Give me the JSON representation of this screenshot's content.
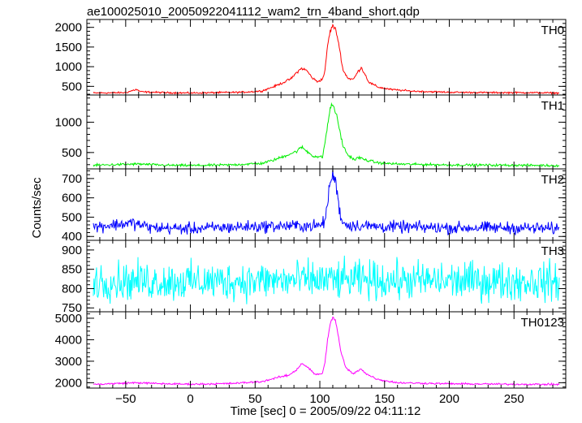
{
  "title": "ae100025010_20050922041112_wam2_trn_4band_short.qdp",
  "xlabel": "Time [sec] 0 = 2005/09/22 04:11:12",
  "ylabel": "Counts/sec",
  "chart_data": {
    "type": "line",
    "title": "ae100025010_20050922041112_wam2_trn_4band_short.qdp",
    "xlabel": "Time [sec] 0 = 2005/09/22 04:11:12",
    "ylabel": "Counts/sec",
    "xlim": [
      -80,
      290
    ],
    "xticks": [
      "−50",
      "0",
      "50",
      "100",
      "150",
      "200",
      "250"
    ],
    "xtick_values": [
      -50,
      0,
      50,
      100,
      150,
      200,
      250
    ],
    "panels": [
      {
        "name": "TH0",
        "color": "#ff0000",
        "ylim": [
          280,
          2200
        ],
        "yticks": [
          500,
          1000,
          1500,
          2000
        ],
        "ytick_labels": [
          "500",
          "1000",
          "1500",
          "2000"
        ],
        "baseline": 330,
        "noise": 15,
        "points": [
          [
            -75,
            330
          ],
          [
            -50,
            340
          ],
          [
            -42,
            420
          ],
          [
            -38,
            360
          ],
          [
            -20,
            340
          ],
          [
            0,
            330
          ],
          [
            20,
            340
          ],
          [
            40,
            350
          ],
          [
            55,
            380
          ],
          [
            65,
            500
          ],
          [
            72,
            600
          ],
          [
            78,
            700
          ],
          [
            82,
            850
          ],
          [
            86,
            960
          ],
          [
            90,
            900
          ],
          [
            94,
            720
          ],
          [
            98,
            620
          ],
          [
            102,
            680
          ],
          [
            104,
            900
          ],
          [
            106,
            1550
          ],
          [
            108,
            1900
          ],
          [
            110,
            2050
          ],
          [
            112,
            1950
          ],
          [
            114,
            1700
          ],
          [
            116,
            1300
          ],
          [
            118,
            900
          ],
          [
            122,
            700
          ],
          [
            126,
            680
          ],
          [
            129,
            850
          ],
          [
            132,
            980
          ],
          [
            135,
            800
          ],
          [
            138,
            600
          ],
          [
            145,
            480
          ],
          [
            155,
            420
          ],
          [
            170,
            380
          ],
          [
            200,
            350
          ],
          [
            230,
            340
          ],
          [
            260,
            340
          ],
          [
            285,
            330
          ]
        ]
      },
      {
        "name": "TH1",
        "color": "#00ee00",
        "ylim": [
          230,
          1450
        ],
        "yticks": [
          500,
          1000
        ],
        "ytick_labels": [
          "500",
          "1000"
        ],
        "baseline": 290,
        "noise": 14,
        "points": [
          [
            -75,
            290
          ],
          [
            -40,
            310
          ],
          [
            -20,
            290
          ],
          [
            0,
            285
          ],
          [
            30,
            295
          ],
          [
            55,
            320
          ],
          [
            65,
            380
          ],
          [
            75,
            460
          ],
          [
            82,
            520
          ],
          [
            86,
            590
          ],
          [
            90,
            520
          ],
          [
            95,
            440
          ],
          [
            102,
            420
          ],
          [
            105,
            800
          ],
          [
            107,
            1100
          ],
          [
            109,
            1300
          ],
          [
            111,
            1250
          ],
          [
            113,
            1100
          ],
          [
            115,
            900
          ],
          [
            118,
            600
          ],
          [
            122,
            450
          ],
          [
            127,
            380
          ],
          [
            130,
            420
          ],
          [
            135,
            380
          ],
          [
            145,
            330
          ],
          [
            160,
            310
          ],
          [
            200,
            295
          ],
          [
            250,
            290
          ],
          [
            285,
            285
          ]
        ]
      },
      {
        "name": "TH2",
        "color": "#0000ff",
        "ylim": [
          380,
          750
        ],
        "yticks": [
          400,
          500,
          600,
          700
        ],
        "ytick_labels": [
          "400",
          "500",
          "600",
          "700"
        ],
        "baseline": 450,
        "noise": 22,
        "points": [
          [
            -75,
            450
          ],
          [
            -45,
            470
          ],
          [
            -30,
            445
          ],
          [
            0,
            440
          ],
          [
            40,
            450
          ],
          [
            80,
            455
          ],
          [
            100,
            455
          ],
          [
            104,
            480
          ],
          [
            106,
            580
          ],
          [
            108,
            680
          ],
          [
            110,
            720
          ],
          [
            112,
            690
          ],
          [
            114,
            600
          ],
          [
            116,
            500
          ],
          [
            120,
            460
          ],
          [
            150,
            450
          ],
          [
            200,
            445
          ],
          [
            250,
            445
          ],
          [
            285,
            440
          ]
        ]
      },
      {
        "name": "TH3",
        "color": "#00ffff",
        "ylim": [
          740,
          925
        ],
        "yticks": [
          750,
          800,
          850,
          900
        ],
        "ytick_labels": [
          "750",
          "800",
          "850",
          "900"
        ],
        "baseline": 820,
        "noise": 35,
        "points": [
          [
            -75,
            820
          ],
          [
            0,
            818
          ],
          [
            100,
            822
          ],
          [
            200,
            820
          ],
          [
            285,
            818
          ]
        ]
      },
      {
        "name": "TH0123",
        "color": "#ff00ff",
        "ylim": [
          1750,
          5300
        ],
        "yticks": [
          2000,
          3000,
          4000,
          5000
        ],
        "ytick_labels": [
          "2000",
          "3000",
          "4000",
          "5000"
        ],
        "baseline": 1920,
        "noise": 30,
        "points": [
          [
            -75,
            1920
          ],
          [
            -42,
            2000
          ],
          [
            -20,
            1950
          ],
          [
            0,
            1930
          ],
          [
            30,
            1960
          ],
          [
            55,
            2050
          ],
          [
            68,
            2250
          ],
          [
            76,
            2350
          ],
          [
            82,
            2600
          ],
          [
            86,
            2900
          ],
          [
            90,
            2750
          ],
          [
            96,
            2400
          ],
          [
            102,
            2400
          ],
          [
            104,
            3000
          ],
          [
            106,
            4000
          ],
          [
            108,
            4700
          ],
          [
            110,
            5050
          ],
          [
            112,
            4900
          ],
          [
            114,
            4300
          ],
          [
            116,
            3500
          ],
          [
            120,
            2700
          ],
          [
            126,
            2400
          ],
          [
            129,
            2550
          ],
          [
            132,
            2650
          ],
          [
            136,
            2400
          ],
          [
            145,
            2150
          ],
          [
            160,
            2000
          ],
          [
            200,
            1950
          ],
          [
            250,
            1930
          ],
          [
            285,
            1920
          ]
        ]
      }
    ]
  }
}
